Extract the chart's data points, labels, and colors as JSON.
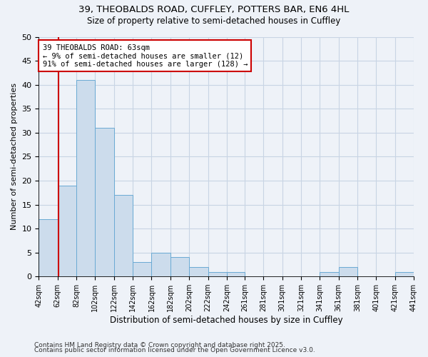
{
  "title_line1": "39, THEOBALDS ROAD, CUFFLEY, POTTERS BAR, EN6 4HL",
  "title_line2": "Size of property relative to semi-detached houses in Cuffley",
  "xlabel": "Distribution of semi-detached houses by size in Cuffley",
  "ylabel": "Number of semi-detached properties",
  "bin_edges": [
    42,
    62,
    82,
    102,
    122,
    142,
    162,
    182,
    202,
    222,
    242,
    261,
    281,
    301,
    321,
    341,
    361,
    381,
    401,
    421,
    441
  ],
  "bar_heights": [
    12,
    19,
    41,
    31,
    17,
    3,
    5,
    4,
    2,
    1,
    1,
    0,
    0,
    0,
    0,
    1,
    2,
    0,
    0,
    1
  ],
  "bar_color": "#ccdcec",
  "bar_edge_color": "#6aaad4",
  "property_size": 63,
  "property_line_color": "#cc0000",
  "annotation_line1": "39 THEOBALDS ROAD: 63sqm",
  "annotation_line2": "← 9% of semi-detached houses are smaller (12)",
  "annotation_line3": "91% of semi-detached houses are larger (128) →",
  "annotation_box_facecolor": "#ffffff",
  "annotation_box_edgecolor": "#cc0000",
  "ylim": [
    0,
    50
  ],
  "yticks": [
    0,
    5,
    10,
    15,
    20,
    25,
    30,
    35,
    40,
    45,
    50
  ],
  "tick_labels": [
    "42sqm",
    "62sqm",
    "82sqm",
    "102sqm",
    "122sqm",
    "142sqm",
    "162sqm",
    "182sqm",
    "202sqm",
    "222sqm",
    "242sqm",
    "261sqm",
    "281sqm",
    "301sqm",
    "321sqm",
    "341sqm",
    "361sqm",
    "381sqm",
    "401sqm",
    "421sqm",
    "441sqm"
  ],
  "footer_line1": "Contains HM Land Registry data © Crown copyright and database right 2025.",
  "footer_line2": "Contains public sector information licensed under the Open Government Licence v3.0.",
  "grid_color": "#c8d4e4",
  "bg_color": "#eef2f8"
}
